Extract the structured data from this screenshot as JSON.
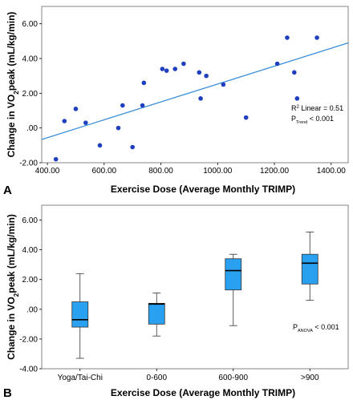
{
  "chart_data": [
    {
      "panel_label": "A",
      "type": "scatter",
      "xlabel": "Exercise Dose (Average Monthly TRIMP)",
      "ylabel": "Change in VO2peak (mL/kg/min)",
      "ylabel_parts": {
        "pre": "Change in VO",
        "sub": "2",
        "post": "peak (mL/kg/min)"
      },
      "xlim": [
        380,
        1460
      ],
      "ylim": [
        -2.0,
        7.0
      ],
      "x_ticks": [
        400,
        600,
        800,
        1000,
        1200,
        1400
      ],
      "x_tick_labels": [
        "400.00",
        "600.00",
        "800.00",
        "1000.00",
        "1200.00",
        "1400.00"
      ],
      "y_ticks": [
        -2,
        0,
        2,
        4,
        6
      ],
      "y_tick_labels": [
        "-2.00",
        ".00",
        "2.00",
        "4.00",
        "6.00"
      ],
      "x": [
        430,
        460,
        500,
        535,
        585,
        650,
        665,
        700,
        735,
        740,
        805,
        820,
        850,
        880,
        935,
        940,
        960,
        1020,
        1100,
        1210,
        1245,
        1270,
        1280,
        1350
      ],
      "y": [
        -1.8,
        0.4,
        1.1,
        0.3,
        -1.0,
        0.0,
        1.3,
        -1.1,
        1.3,
        2.6,
        3.4,
        3.3,
        3.4,
        3.7,
        3.2,
        1.7,
        3.0,
        2.5,
        0.6,
        3.7,
        5.2,
        3.2,
        1.7,
        5.2
      ],
      "trend_line": {
        "x": [
          380,
          1460
        ],
        "y": [
          -0.66,
          4.9
        ]
      },
      "point_color": "#1f3fbf",
      "line_color": "#3a8fd9",
      "annotations": [
        {
          "pre": "R",
          "sup": "2",
          "post": " Linear = 0.51"
        },
        {
          "pre": "P",
          "sub": "Trend",
          "post": " < 0.001"
        }
      ]
    },
    {
      "panel_label": "B",
      "type": "box",
      "xlabel": "Exercise Dose (Average Monthly TRIMP)",
      "ylabel": "Change in VO2peak (mL/kg/min)",
      "ylabel_parts": {
        "pre": "Change in VO",
        "sub": "2",
        "post": "peak (mL/kg/min)"
      },
      "ylim": [
        -4.0,
        7.0
      ],
      "y_ticks": [
        -4,
        -2,
        0,
        2,
        4,
        6
      ],
      "y_tick_labels": [
        "-4.00",
        "-2.00",
        ".00",
        "2.00",
        "4.00",
        "6.00"
      ],
      "categories": [
        "Yoga/Tai-Chi",
        "0-600",
        "600-900",
        ">900"
      ],
      "boxes": [
        {
          "min": -3.3,
          "q1": -1.2,
          "median": -0.7,
          "q3": 0.5,
          "max": 2.4
        },
        {
          "min": -1.8,
          "q1": -1.0,
          "median": 0.35,
          "q3": 0.4,
          "max": 1.1
        },
        {
          "min": -1.1,
          "q1": 1.3,
          "median": 2.6,
          "q3": 3.4,
          "max": 3.7
        },
        {
          "min": 0.6,
          "q1": 1.7,
          "median": 3.1,
          "q3": 3.7,
          "max": 5.2
        }
      ],
      "box_color": "#2aa0f0",
      "annotations": [
        {
          "pre": "P",
          "sub": "ANOVA",
          "post": " < 0.001"
        }
      ]
    }
  ]
}
